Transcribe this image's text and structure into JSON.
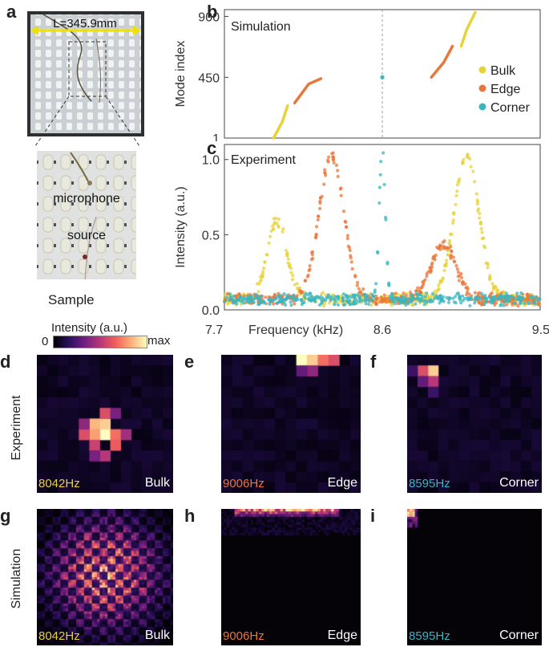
{
  "panels": {
    "a": "a",
    "b": "b",
    "c": "c",
    "d": "d",
    "e": "e",
    "f": "f",
    "g": "g",
    "h": "h",
    "i": "i"
  },
  "sample": {
    "length_label": "L=345.9mm",
    "microphone_label": "microphone",
    "source_label": "source",
    "caption": "Sample"
  },
  "colorbar": {
    "title": "Intensity (a.u.)",
    "min_label": "0",
    "max_label": "max"
  },
  "row_labels": {
    "experiment": "Experiment",
    "simulation": "Simulation"
  },
  "field_maps": [
    {
      "freq": "8042Hz",
      "type": "Bulk"
    },
    {
      "freq": "9006Hz",
      "type": "Edge"
    },
    {
      "freq": "8595Hz",
      "type": "Corner"
    },
    {
      "freq": "8042Hz",
      "type": "Bulk"
    },
    {
      "freq": "9006Hz",
      "type": "Edge"
    },
    {
      "freq": "8595Hz",
      "type": "Corner"
    }
  ],
  "colors": {
    "bulk": "#e8d23a",
    "edge": "#e8773a",
    "corner": "#3ab5c0",
    "axis": "#444444"
  },
  "chart_data": [
    {
      "type": "scatter",
      "title": "Simulation",
      "xlabel": "",
      "ylabel": "Mode index",
      "xlim": [
        7.7,
        9.5
      ],
      "ylim": [
        1,
        950
      ],
      "y_ticks": [
        1,
        450,
        900
      ],
      "legend": [
        "Bulk",
        "Edge",
        "Corner"
      ],
      "legend_position": "right",
      "series": [
        {
          "name": "Bulk",
          "points": [
            [
              7.98,
              1
            ],
            [
              8.03,
              120
            ],
            [
              8.06,
              240
            ]
          ]
        },
        {
          "name": "Bulk",
          "points": [
            [
              9.05,
              680
            ],
            [
              9.08,
              800
            ],
            [
              9.13,
              930
            ]
          ]
        },
        {
          "name": "Edge",
          "points": [
            [
              8.1,
              260
            ],
            [
              8.18,
              400
            ],
            [
              8.25,
              440
            ]
          ]
        },
        {
          "name": "Edge",
          "points": [
            [
              8.88,
              450
            ],
            [
              8.95,
              560
            ],
            [
              9.0,
              680
            ]
          ]
        },
        {
          "name": "Corner",
          "points": [
            [
              8.6,
              450
            ]
          ]
        }
      ]
    },
    {
      "type": "scatter",
      "title": "Experiment",
      "xlabel": "Frequency (kHz)",
      "ylabel": "Intensity (a.u.)",
      "xlim": [
        7.7,
        9.5
      ],
      "ylim": [
        0,
        1.1
      ],
      "x_ticks": [
        "7.7",
        "8.6",
        "9.5"
      ],
      "y_ticks": [
        "0.0",
        "0.5",
        "1.0"
      ],
      "series": [
        {
          "name": "Bulk",
          "peaks": [
            {
              "center": 8.0,
              "height": 0.52,
              "width": 0.08
            },
            {
              "center": 9.08,
              "height": 0.95,
              "width": 0.1
            }
          ]
        },
        {
          "name": "Edge",
          "peaks": [
            {
              "center": 8.31,
              "height": 0.96,
              "width": 0.1
            },
            {
              "center": 8.95,
              "height": 0.36,
              "width": 0.1
            }
          ]
        },
        {
          "name": "Corner",
          "peaks": [
            {
              "center": 8.6,
              "height": 1.0,
              "width": 0.025
            }
          ]
        }
      ]
    }
  ]
}
